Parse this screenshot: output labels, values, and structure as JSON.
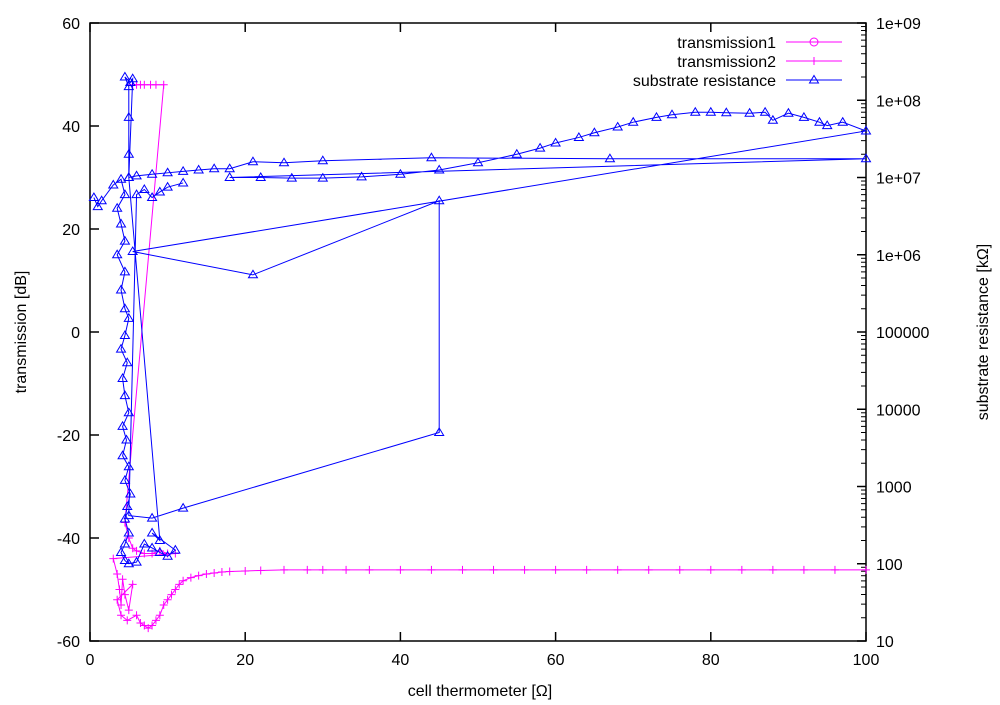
{
  "chart_data": {
    "type": "scatter",
    "xlabel": "cell thermometer [Ω]",
    "ylabel": "transmission [dB]",
    "y2label": "substrate resistance [kΩ]",
    "xlim": [
      0,
      100
    ],
    "ylim": [
      -60,
      60
    ],
    "y2lim": [
      10,
      1000000000
    ],
    "y2scale": "log",
    "xticks": [
      "0",
      "20",
      "40",
      "60",
      "80",
      "100"
    ],
    "yticks": [
      "-60",
      "-40",
      "-20",
      "0",
      "20",
      "40",
      "60"
    ],
    "y2ticks": [
      "10",
      "100",
      "1000",
      "10000",
      "100000",
      "1e+06",
      "1e+07",
      "1e+08",
      "1e+09"
    ],
    "legend_position": "top-right",
    "grid": false,
    "series": [
      {
        "name": "transmission1",
        "color": "#ff00ff",
        "marker": "circle",
        "axis": "y",
        "points": []
      },
      {
        "name": "transmission2",
        "color": "#ff00ff",
        "marker": "plus",
        "axis": "y",
        "points": [
          [
            5.5,
            48
          ],
          [
            6,
            48
          ],
          [
            6.5,
            48
          ],
          [
            7,
            48
          ],
          [
            7.8,
            48
          ],
          [
            8.5,
            48
          ],
          [
            9.5,
            48
          ],
          [
            4.5,
            -37
          ],
          [
            5,
            -40
          ],
          [
            5.5,
            -42
          ],
          [
            6,
            -42.5
          ],
          [
            7,
            -43
          ],
          [
            8,
            -43
          ],
          [
            9,
            -42.5
          ],
          [
            10,
            -43
          ],
          [
            11,
            -43
          ],
          [
            3,
            -44
          ],
          [
            3.5,
            -47
          ],
          [
            3.8,
            -50
          ],
          [
            4,
            -53
          ],
          [
            4.2,
            -48
          ],
          [
            4.5,
            -51
          ],
          [
            5,
            -54
          ],
          [
            5.5,
            -49
          ],
          [
            3.5,
            -52
          ],
          [
            4,
            -55
          ],
          [
            4.8,
            -56
          ],
          [
            6,
            -55
          ],
          [
            6.5,
            -56.5
          ],
          [
            7,
            -57
          ],
          [
            7.5,
            -57.5
          ],
          [
            8,
            -57
          ],
          [
            8.5,
            -56
          ],
          [
            9,
            -55
          ],
          [
            9.5,
            -53
          ],
          [
            10,
            -52
          ],
          [
            10.5,
            -51
          ],
          [
            11,
            -50
          ],
          [
            11.5,
            -49
          ],
          [
            12,
            -48.3
          ],
          [
            13,
            -47.7
          ],
          [
            14,
            -47.3
          ],
          [
            15,
            -47
          ],
          [
            16,
            -46.8
          ],
          [
            17,
            -46.6
          ],
          [
            18,
            -46.5
          ],
          [
            20,
            -46.4
          ],
          [
            22,
            -46.3
          ],
          [
            25,
            -46.2
          ],
          [
            28,
            -46.2
          ],
          [
            30,
            -46.2
          ],
          [
            33,
            -46.2
          ],
          [
            36,
            -46.2
          ],
          [
            40,
            -46.2
          ],
          [
            44,
            -46.2
          ],
          [
            48,
            -46.2
          ],
          [
            52,
            -46.2
          ],
          [
            56,
            -46.2
          ],
          [
            60,
            -46.2
          ],
          [
            64,
            -46.2
          ],
          [
            68,
            -46.2
          ],
          [
            72,
            -46.2
          ],
          [
            76,
            -46.2
          ],
          [
            80,
            -46.2
          ],
          [
            84,
            -46.2
          ],
          [
            88,
            -46.2
          ],
          [
            92,
            -46.2
          ],
          [
            96,
            -46.2
          ],
          [
            100,
            -46.2
          ]
        ]
      },
      {
        "name": "substrate resistance",
        "color": "#0000ff",
        "marker": "triangle",
        "axis": "y2",
        "points": [
          [
            0.5,
            5500000
          ],
          [
            1,
            4200000
          ],
          [
            1.5,
            5000000
          ],
          [
            3,
            8000000
          ],
          [
            4,
            9500000
          ],
          [
            4.5,
            6000000
          ],
          [
            3.5,
            4000000
          ],
          [
            4,
            2500000
          ],
          [
            4.5,
            1500000
          ],
          [
            3.5,
            1000000
          ],
          [
            4.5,
            600000
          ],
          [
            4,
            350000
          ],
          [
            4.5,
            200000
          ],
          [
            5,
            150000
          ],
          [
            4.5,
            90000
          ],
          [
            4,
            60000
          ],
          [
            4.8,
            40000
          ],
          [
            4.2,
            25000
          ],
          [
            4.5,
            15000
          ],
          [
            5,
            9000
          ],
          [
            4.2,
            6000
          ],
          [
            4.7,
            4000
          ],
          [
            4.2,
            2500
          ],
          [
            5,
            1800
          ],
          [
            4.5,
            1200
          ],
          [
            5.2,
            800
          ],
          [
            4.8,
            550
          ],
          [
            4.5,
            380
          ],
          [
            5,
            250
          ],
          [
            4.5,
            180
          ],
          [
            4,
            140
          ],
          [
            4.5,
            110
          ],
          [
            5,
            100
          ],
          [
            6,
            105
          ],
          [
            7,
            180
          ],
          [
            8,
            160
          ],
          [
            9,
            140
          ],
          [
            10,
            125
          ],
          [
            11,
            150
          ],
          [
            8,
            250
          ],
          [
            9,
            200
          ],
          [
            5,
            10000000
          ],
          [
            5,
            20000000
          ],
          [
            5,
            60000000
          ],
          [
            5,
            150000000
          ],
          [
            4.5,
            200000000
          ],
          [
            5.2,
            170000000
          ],
          [
            5.5,
            190000000
          ],
          [
            5,
            10000000
          ],
          [
            6,
            10500000
          ],
          [
            8,
            11000000
          ],
          [
            10,
            11500000
          ],
          [
            12,
            12000000
          ],
          [
            14,
            12500000
          ],
          [
            16,
            13000000
          ],
          [
            18,
            13000000
          ],
          [
            21,
            16000000
          ],
          [
            25,
            15500000
          ],
          [
            30,
            16500000
          ],
          [
            44,
            18000000
          ],
          [
            67,
            17500000
          ],
          [
            100,
            17500000
          ],
          [
            18,
            10000000
          ],
          [
            22,
            10000000
          ],
          [
            26,
            9800000
          ],
          [
            30,
            9800000
          ],
          [
            35,
            10200000
          ],
          [
            40,
            11000000
          ],
          [
            45,
            12500000
          ],
          [
            50,
            15500000
          ],
          [
            55,
            20000000
          ],
          [
            58,
            24000000
          ],
          [
            60,
            28000000
          ],
          [
            63,
            33000000
          ],
          [
            65,
            38000000
          ],
          [
            68,
            45000000
          ],
          [
            70,
            52000000
          ],
          [
            73,
            60000000
          ],
          [
            75,
            65000000
          ],
          [
            78,
            70000000
          ],
          [
            80,
            70000000
          ],
          [
            82,
            69000000
          ],
          [
            85,
            68000000
          ],
          [
            87,
            70000000
          ],
          [
            88,
            55000000
          ],
          [
            90,
            68000000
          ],
          [
            92,
            60000000
          ],
          [
            94,
            52000000
          ],
          [
            95,
            47000000
          ],
          [
            97,
            52000000
          ],
          [
            100,
            40000000
          ],
          [
            5.5,
            1100000
          ],
          [
            21,
            550000
          ],
          [
            45,
            5000000
          ],
          [
            45,
            5000
          ],
          [
            12,
            525
          ],
          [
            8,
            390
          ],
          [
            5,
            420
          ],
          [
            6,
            6000000
          ],
          [
            7,
            7000000
          ],
          [
            8,
            5500000
          ],
          [
            9,
            6500000
          ],
          [
            10,
            7500000
          ],
          [
            12,
            8500000
          ]
        ]
      }
    ]
  }
}
